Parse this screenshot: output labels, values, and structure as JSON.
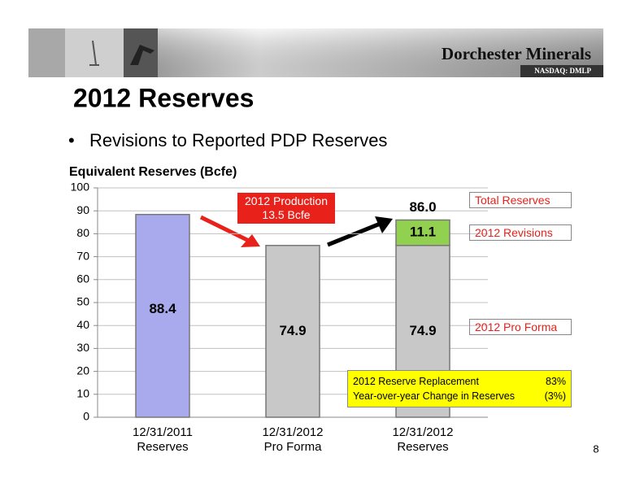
{
  "header": {
    "company": "Dorchester Minerals",
    "ticker": "NASDAQ: DMLP"
  },
  "title": "2012 Reserves",
  "bullet": "Revisions to Reported PDP Reserves",
  "page_number": "8",
  "chart_data": {
    "type": "stacked-bar",
    "y_axis_title": "Equivalent Reserves (Bcfe)",
    "categories": [
      "12/31/2011\nReserves",
      "12/31/2012\nPro Forma",
      "12/31/2012\nReserves"
    ],
    "series": [
      {
        "values": [
          88.4,
          74.9,
          74.9
        ],
        "colors": [
          "#a9a9ee",
          "#c8c8c8",
          "#c8c8c8"
        ]
      },
      {
        "values": [
          null,
          null,
          11.1
        ],
        "color": "#92d050"
      }
    ],
    "totals": [
      null,
      null,
      86
    ],
    "total_labels": [
      null,
      null,
      "86.0"
    ],
    "ylim": [
      0,
      100
    ],
    "yticks": [
      0,
      10,
      20,
      30,
      40,
      50,
      60,
      70,
      80,
      90,
      100
    ],
    "grid": true,
    "annotations": {
      "production": "2012 Production\n13.5 Bcfe",
      "total": "Total Reserves",
      "revisions": "2012 Revisions",
      "pro_forma": "2012 Pro Forma"
    },
    "summary_table": [
      [
        "2012 Reserve Replacement",
        "83%"
      ],
      [
        "Year-over-year Change in Reserves",
        "(3%)"
      ]
    ]
  }
}
